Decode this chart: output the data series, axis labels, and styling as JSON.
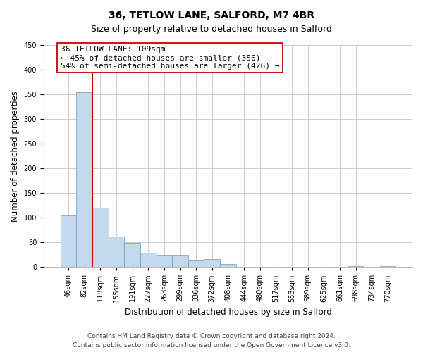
{
  "title_line1": "36, TETLOW LANE, SALFORD, M7 4BR",
  "title_line2": "Size of property relative to detached houses in Salford",
  "xlabel": "Distribution of detached houses by size in Salford",
  "ylabel": "Number of detached properties",
  "bar_labels": [
    "46sqm",
    "82sqm",
    "118sqm",
    "155sqm",
    "191sqm",
    "227sqm",
    "263sqm",
    "299sqm",
    "336sqm",
    "372sqm",
    "408sqm",
    "444sqm",
    "480sqm",
    "517sqm",
    "553sqm",
    "589sqm",
    "625sqm",
    "661sqm",
    "698sqm",
    "734sqm",
    "770sqm"
  ],
  "bar_values": [
    105,
    355,
    120,
    62,
    49,
    29,
    25,
    25,
    13,
    17,
    7,
    0,
    0,
    0,
    0,
    0,
    0,
    0,
    2,
    0,
    2
  ],
  "bar_color": "#c5d9ec",
  "bar_edge_color": "#7ba7c7",
  "vline_color": "#cc0000",
  "annotation_text": "36 TETLOW LANE: 109sqm\n← 45% of detached houses are smaller (356)\n54% of semi-detached houses are larger (426) →",
  "annotation_box_color": "#ffffff",
  "annotation_box_edge": "#cc0000",
  "ylim": [
    0,
    450
  ],
  "yticks": [
    0,
    50,
    100,
    150,
    200,
    250,
    300,
    350,
    400,
    450
  ],
  "bg_color": "#ffffff",
  "grid_color": "#cccccc",
  "footer_line1": "Contains HM Land Registry data © Crown copyright and database right 2024.",
  "footer_line2": "Contains public sector information licensed under the Open Government Licence v3.0.",
  "title_fontsize": 10,
  "subtitle_fontsize": 9,
  "axis_label_fontsize": 8.5,
  "tick_fontsize": 7,
  "annotation_fontsize": 8,
  "footer_fontsize": 6.5
}
